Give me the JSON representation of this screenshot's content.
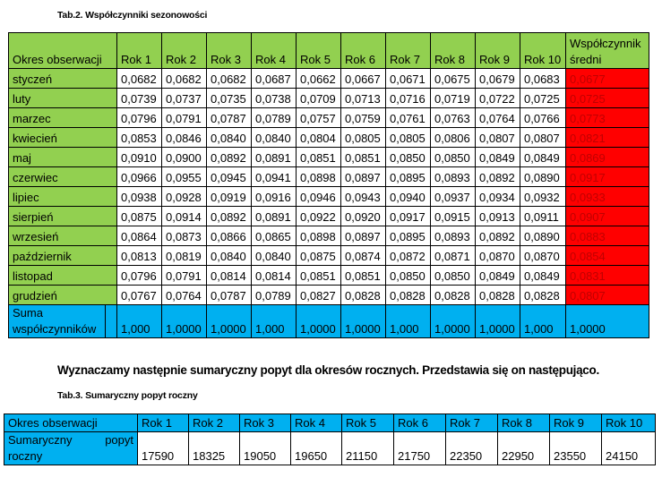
{
  "table1": {
    "caption": "Tab.2. Współczynniki sezonowości",
    "header": {
      "period_label": "Okres obserwacji",
      "years": [
        "Rok 1",
        "Rok 2",
        "Rok 3",
        "Rok 4",
        "Rok 5",
        "Rok 6",
        "Rok 7",
        "Rok 8",
        "Rok 9",
        "Rok 10"
      ],
      "avg_label": "Współczynnik średni"
    },
    "rows": [
      {
        "month": "styczeń",
        "values": [
          "0,0682",
          "0,0682",
          "0,0682",
          "0,0687",
          "0,0662",
          "0,0667",
          "0,0671",
          "0,0675",
          "0,0679",
          "0,0683"
        ],
        "avg": "0,0677"
      },
      {
        "month": "luty",
        "values": [
          "0,0739",
          "0,0737",
          "0,0735",
          "0,0738",
          "0,0709",
          "0,0713",
          "0,0716",
          "0,0719",
          "0,0722",
          "0,0725"
        ],
        "avg": "0,0725"
      },
      {
        "month": "marzec",
        "values": [
          "0,0796",
          "0,0791",
          "0,0787",
          "0,0789",
          "0,0757",
          "0,0759",
          "0,0761",
          "0,0763",
          "0,0764",
          "0,0766"
        ],
        "avg": "0,0773"
      },
      {
        "month": "kwiecień",
        "values": [
          "0,0853",
          "0,0846",
          "0,0840",
          "0,0840",
          "0,0804",
          "0,0805",
          "0,0805",
          "0,0806",
          "0,0807",
          "0,0807"
        ],
        "avg": "0,0821"
      },
      {
        "month": "maj",
        "values": [
          "0,0910",
          "0,0900",
          "0,0892",
          "0,0891",
          "0,0851",
          "0,0851",
          "0,0850",
          "0,0850",
          "0,0849",
          "0,0849"
        ],
        "avg": "0,0869"
      },
      {
        "month": "czerwiec",
        "values": [
          "0,0966",
          "0,0955",
          "0,0945",
          "0,0941",
          "0,0898",
          "0,0897",
          "0,0895",
          "0,0893",
          "0,0892",
          "0,0890"
        ],
        "avg": "0,0917"
      },
      {
        "month": "lipiec",
        "values": [
          "0,0938",
          "0,0928",
          "0,0919",
          "0,0916",
          "0,0946",
          "0,0943",
          "0,0940",
          "0,0937",
          "0,0934",
          "0,0932"
        ],
        "avg": "0,0933"
      },
      {
        "month": "sierpień",
        "values": [
          "0,0875",
          "0,0914",
          "0,0892",
          "0,0891",
          "0,0922",
          "0,0920",
          "0,0917",
          "0,0915",
          "0,0913",
          "0,0911"
        ],
        "avg": "0,0907"
      },
      {
        "month": "wrzesień",
        "values": [
          "0,0864",
          "0,0873",
          "0,0866",
          "0,0865",
          "0,0898",
          "0,0897",
          "0,0895",
          "0,0893",
          "0,0892",
          "0,0890"
        ],
        "avg": "0,0883"
      },
      {
        "month": "październik",
        "values": [
          "0,0813",
          "0,0819",
          "0,0840",
          "0,0840",
          "0,0875",
          "0,0874",
          "0,0872",
          "0,0871",
          "0,0870",
          "0,0870"
        ],
        "avg": "0,0854"
      },
      {
        "month": "listopad",
        "values": [
          "0,0796",
          "0,0791",
          "0,0814",
          "0,0814",
          "0,0851",
          "0,0851",
          "0,0850",
          "0,0850",
          "0,0849",
          "0,0849"
        ],
        "avg": "0,0831"
      },
      {
        "month": "grudzień",
        "values": [
          "0,0767",
          "0,0764",
          "0,0787",
          "0,0789",
          "0,0827",
          "0,0828",
          "0,0828",
          "0,0828",
          "0,0828",
          "0,0828"
        ],
        "avg": "0,0807"
      }
    ],
    "sum_row": {
      "label": "Suma współczynników",
      "values": [
        "1,000",
        "1,0000",
        "1,0000",
        "1,000",
        "1,0000",
        "1,0000",
        "1,000",
        "1,0000",
        "1,0000",
        "1,000"
      ],
      "avg": "1,0000"
    },
    "colors": {
      "header_bg": "#92d050",
      "avg_bg": "#ff0000",
      "avg_text": "#c00000",
      "sum_bg": "#00b0f0"
    }
  },
  "paragraph": "Wyznaczamy następnie sumaryczny popyt dla okresów rocznych. Przedstawia się on następująco.",
  "table2": {
    "caption": "Tab.3. Sumaryczny popyt roczny",
    "header": {
      "period_label": "Okres obserwacji",
      "years": [
        "Rok 1",
        "Rok 2",
        "Rok 3",
        "Rok 4",
        "Rok 5",
        "Rok 6",
        "Rok 7",
        "Rok 8",
        "Rok 9",
        "Rok 10"
      ]
    },
    "row": {
      "label": "Sumaryczny popyt roczny",
      "values": [
        "17590",
        "18325",
        "19050",
        "19650",
        "21150",
        "21750",
        "22350",
        "22950",
        "23550",
        "24150"
      ]
    },
    "colors": {
      "header_bg": "#00b0f0"
    }
  }
}
